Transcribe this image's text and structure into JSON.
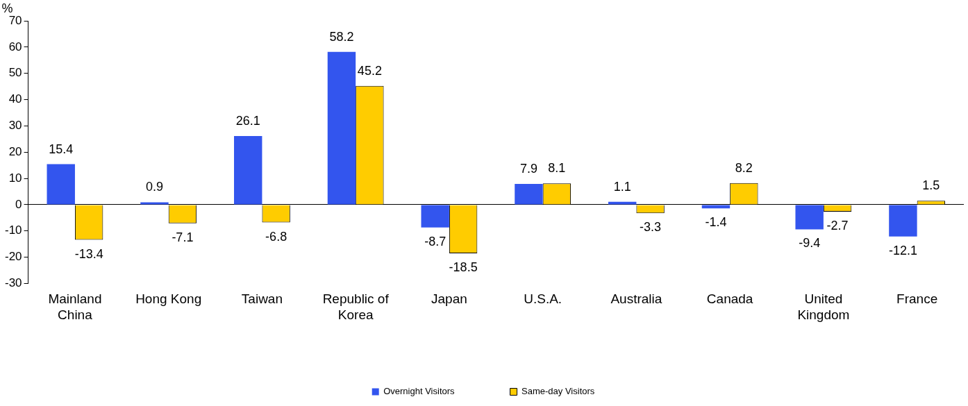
{
  "chart_data": {
    "type": "bar",
    "ylabel": "%",
    "categories": [
      "Mainland China",
      "Hong Kong",
      "Taiwan",
      "Republic of Korea",
      "Japan",
      "U.S.A.",
      "Australia",
      "Canada",
      "United Kingdom",
      "France"
    ],
    "series": [
      {
        "name": "Overnight Visitors",
        "color": "#3355ee",
        "values": [
          15.4,
          0.9,
          26.1,
          58.2,
          -8.7,
          7.9,
          1.1,
          -1.4,
          -9.4,
          -12.1
        ]
      },
      {
        "name": "Same-day Visitors",
        "color": "#ffcc00",
        "values": [
          -13.4,
          -7.1,
          -6.8,
          45.2,
          -18.5,
          8.1,
          -3.3,
          8.2,
          -2.7,
          1.5
        ]
      }
    ],
    "ylim": [
      -30,
      70
    ],
    "yticks": [
      -30,
      -20,
      -10,
      0,
      10,
      20,
      30,
      40,
      50,
      60,
      70
    ],
    "data_labels": true,
    "legend": "bottom"
  }
}
